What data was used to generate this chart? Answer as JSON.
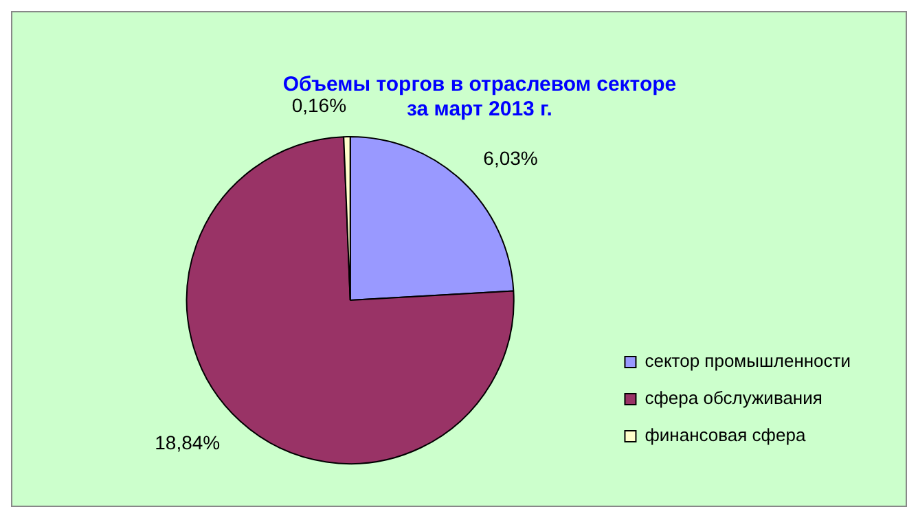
{
  "chart_data": {
    "type": "pie",
    "title": "Объемы торгов в отраслевом секторе\nза март 2013 г.",
    "categories": [
      "сектор промышленности",
      "сфера обслуживания",
      "финансовая сфера"
    ],
    "values": [
      6.03,
      18.84,
      0.16
    ],
    "value_labels": [
      "6,03%",
      "18,84%",
      "0,16%"
    ],
    "colors": [
      "#9999ff",
      "#993366",
      "#ffffcc"
    ],
    "legend": "bottom right"
  }
}
